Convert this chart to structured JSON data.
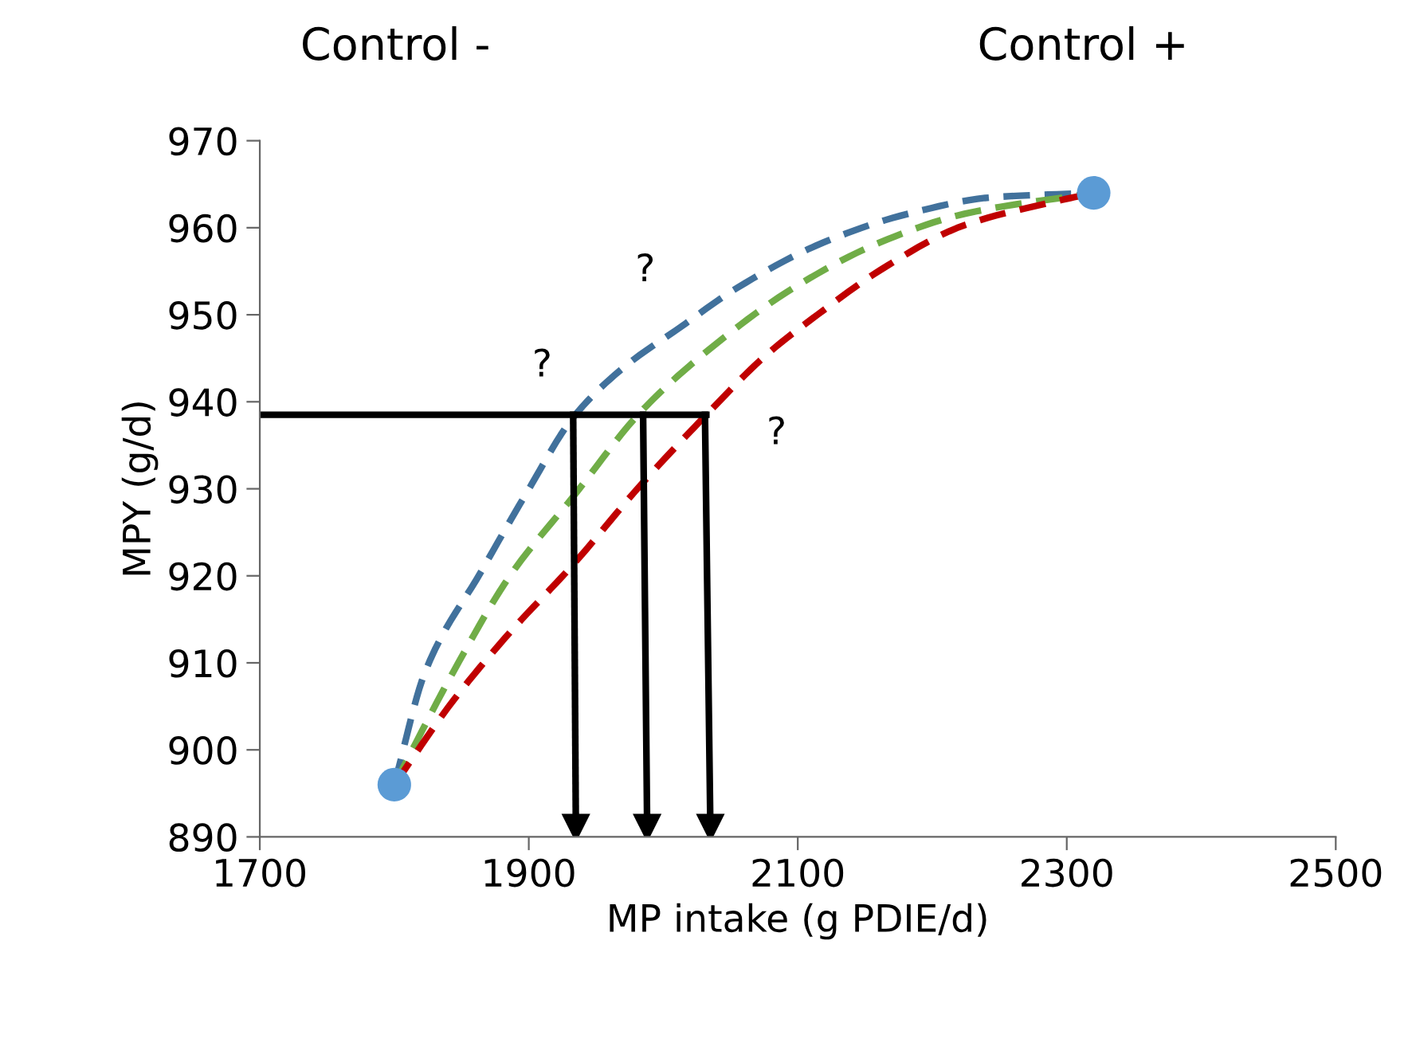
{
  "chart_data": {
    "type": "line",
    "xlabel": "MP intake (g PDIE/d)",
    "ylabel": "MPY (g/d)",
    "xlim": [
      1700,
      2500
    ],
    "xticks": [
      1700,
      1900,
      2100,
      2300,
      2500
    ],
    "ylim": [
      890,
      970
    ],
    "yticks": [
      890,
      900,
      910,
      920,
      930,
      940,
      950,
      960,
      970
    ],
    "grid": false,
    "legend": false,
    "line_style": "dashed",
    "marker": "none",
    "series": [
      {
        "color": "#41719c",
        "x": [
          1800,
          1823,
          1865,
          1899,
          1933,
          1971,
          2013,
          2055,
          2119,
          2182,
          2245,
          2320
        ],
        "values": [
          896,
          909,
          920.6,
          929.7,
          938.2,
          944,
          948.6,
          953.1,
          958.3,
          961.6,
          963.5,
          964
        ]
      },
      {
        "color": "#70ad47",
        "x": [
          1800,
          1844,
          1886,
          1933,
          1983,
          2034,
          2097,
          2161,
          2224,
          2320
        ],
        "values": [
          896,
          909,
          920,
          929.1,
          938.8,
          946,
          953.1,
          958.3,
          961.6,
          964
        ]
      },
      {
        "color": "#c00000",
        "x": [
          1800,
          1844,
          1886,
          1933,
          1983,
          2032,
          2076,
          2119,
          2161,
          2224,
          2288,
          2320
        ],
        "values": [
          896,
          905.7,
          913.5,
          921.3,
          930.4,
          938.5,
          945.3,
          950.5,
          955.1,
          960.3,
          962.9,
          964
        ]
      },
      {
        "color": "#000000",
        "line_style": "solid",
        "x": [
          1700,
          2032
        ],
        "values": [
          938.5,
          938.5
        ]
      },
      {
        "color": "#000000",
        "line_style": "solid",
        "marker": "triangle",
        "x": [
          1933,
          1935
        ],
        "values": [
          938.5,
          891
        ]
      },
      {
        "color": "#000000",
        "line_style": "solid",
        "marker": "triangle",
        "x": [
          1985,
          1988
        ],
        "values": [
          938.5,
          891
        ]
      },
      {
        "color": "#000000",
        "line_style": "solid",
        "marker": "triangle",
        "x": [
          2031,
          2035
        ],
        "values": [
          938.5,
          891
        ]
      },
      {
        "type": "scatter",
        "color": "#5b9bd5",
        "marker": "circle",
        "x": [
          1800,
          2320
        ],
        "values": [
          896,
          964
        ]
      }
    ],
    "annotations": [
      "Control -",
      "Control +",
      "?",
      "?",
      "?"
    ]
  }
}
